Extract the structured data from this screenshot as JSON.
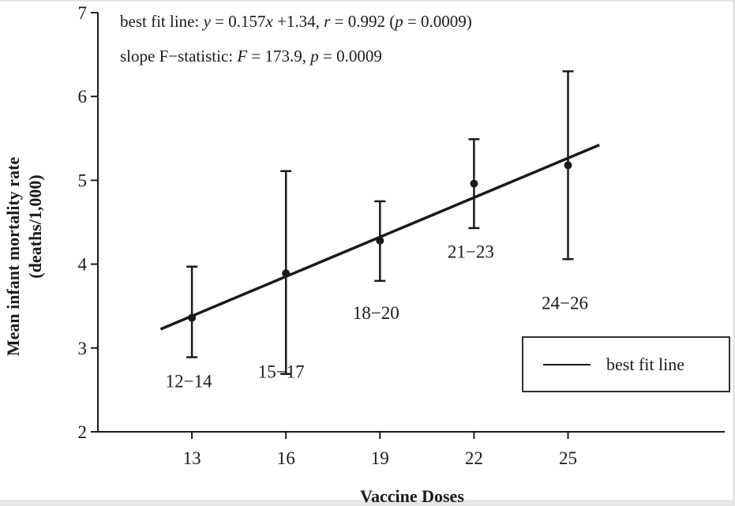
{
  "chart_data": {
    "type": "scatter",
    "title": "",
    "xlabel": "Vaccine Doses",
    "ylabel": "Mean infant mortality rate",
    "ylabel2": "(deaths/1,000)",
    "xlim": [
      10,
      30
    ],
    "ylim": [
      2,
      7
    ],
    "xticks": [
      13,
      16,
      19,
      22,
      25
    ],
    "yticks": [
      2,
      3,
      4,
      5,
      6,
      7
    ],
    "points": [
      {
        "label": "12−14",
        "x": 13,
        "y": 3.36,
        "lower": 2.89,
        "upper": 3.97
      },
      {
        "label": "15−17",
        "x": 16,
        "y": 3.89,
        "lower": 2.69,
        "upper": 5.11
      },
      {
        "label": "18−20",
        "x": 19,
        "y": 4.28,
        "lower": 3.8,
        "upper": 4.75
      },
      {
        "label": "21−23",
        "x": 22,
        "y": 4.96,
        "lower": 4.43,
        "upper": 5.49
      },
      {
        "label": "24−26",
        "x": 25,
        "y": 5.18,
        "lower": 4.06,
        "upper": 6.3
      }
    ],
    "fit": {
      "slope": 0.157,
      "intercept": 1.34,
      "x_start": 12,
      "x_end": 26
    },
    "annotations": {
      "line1": {
        "prefix": "best fit line: ",
        "y_var": "y",
        "eq1": " = 0.157",
        "x_var": "x",
        "eq2": " +1.34, ",
        "r_var": "r",
        "eq3": " = 0.992 (",
        "p_var": "p",
        "eq4": " = 0.0009)"
      },
      "line2": {
        "prefix": "slope F−statistic: ",
        "f_var": "F",
        "eq1": " = 173.9, ",
        "p_var": "p",
        "eq2": " = 0.0009"
      }
    },
    "legend": {
      "label": "best fit line",
      "position": "lower-right"
    }
  }
}
